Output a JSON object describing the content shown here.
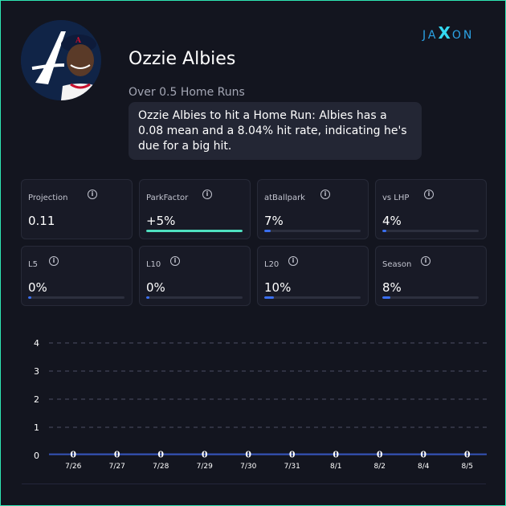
{
  "branding": {
    "logo_text_left": "JA",
    "logo_text_x": "X",
    "logo_text_right": "ON"
  },
  "player": {
    "name": "Ozzie Albies",
    "prop_label": "Over 0.5 Home Runs",
    "summary": "Ozzie Albies to hit a Home Run: Albies has a 0.08 mean and a 8.04% hit rate, indicating he's due for a big hit."
  },
  "stats": [
    {
      "label": "Projection",
      "value": "0.11",
      "fill": null
    },
    {
      "label": "ParkFactor",
      "value": "+5%",
      "fill": 1.0,
      "color": "#4fe0c0"
    },
    {
      "label": "atBallpark",
      "value": "7%",
      "fill": 0.07,
      "color": "#3a6ff0"
    },
    {
      "label": "vs LHP",
      "value": "4%",
      "fill": 0.04,
      "color": "#3a6ff0"
    },
    {
      "label": "L5",
      "value": "0%",
      "fill": 0.0,
      "color": "#3a6ff0"
    },
    {
      "label": "L10",
      "value": "0%",
      "fill": 0.0,
      "color": "#3a6ff0"
    },
    {
      "label": "L20",
      "value": "10%",
      "fill": 0.1,
      "color": "#3a6ff0"
    },
    {
      "label": "Season",
      "value": "8%",
      "fill": 0.08,
      "color": "#3a6ff0"
    }
  ],
  "colors": {
    "line": "#3553b8",
    "grid": "#3a3d4f",
    "accent": "#2ee6b4"
  },
  "chart_data": {
    "type": "line",
    "categories": [
      "7/26",
      "7/27",
      "7/28",
      "7/29",
      "7/30",
      "7/31",
      "8/1",
      "8/2",
      "8/4",
      "8/5"
    ],
    "series": [
      {
        "values": [
          0,
          0,
          0,
          0,
          0,
          0,
          0,
          0,
          0,
          0
        ]
      }
    ],
    "yticks": [
      "0",
      "1",
      "2",
      "3",
      "4"
    ],
    "ylim": [
      0,
      4
    ],
    "grid": true,
    "data_labels": true,
    "title": "",
    "xlabel": "",
    "ylabel": ""
  }
}
